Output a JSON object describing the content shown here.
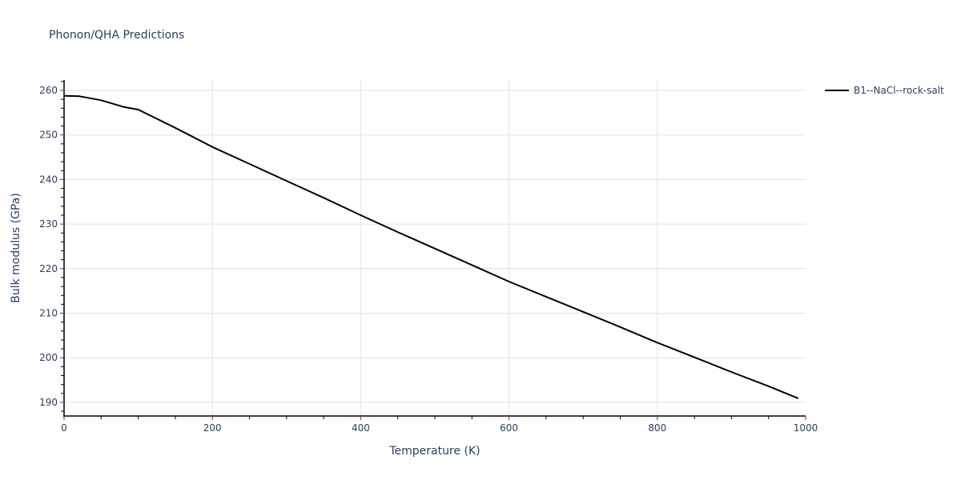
{
  "chart_data": {
    "type": "line",
    "title": "Phonon/QHA Predictions",
    "xlabel": "Temperature (K)",
    "ylabel": "Bulk modulus (GPa)",
    "xlim": [
      0,
      1000
    ],
    "ylim": [
      187.2,
      262.3
    ],
    "x_ticks": [
      0,
      200,
      400,
      600,
      800,
      1000
    ],
    "y_ticks": [
      190,
      200,
      210,
      220,
      230,
      240,
      250,
      260
    ],
    "grid": true,
    "legend_position": "right",
    "series": [
      {
        "name": "B1--NaCl--rock-salt",
        "color": "#000000",
        "x": [
          0,
          20,
          50,
          80,
          100,
          150,
          200,
          250,
          300,
          350,
          400,
          450,
          500,
          550,
          600,
          650,
          700,
          750,
          800,
          850,
          900,
          950,
          990
        ],
        "y": [
          258.8,
          258.7,
          257.8,
          256.3,
          255.7,
          251.6,
          247.3,
          243.5,
          239.7,
          235.9,
          232.0,
          228.2,
          224.5,
          220.8,
          217.1,
          213.7,
          210.3,
          206.9,
          203.4,
          200.1,
          196.8,
          193.6,
          190.9
        ]
      }
    ]
  },
  "header": {
    "title": "Phonon/QHA Predictions"
  },
  "axes": {
    "x_title": "Temperature (K)",
    "y_title": "Bulk modulus (GPa)",
    "x_tick_labels": [
      "0",
      "200",
      "400",
      "600",
      "800",
      "1000"
    ],
    "y_tick_labels": [
      "190",
      "200",
      "210",
      "220",
      "230",
      "240",
      "250",
      "260"
    ]
  },
  "legend": {
    "items": [
      {
        "label": "B1--NaCl--rock-salt",
        "color": "#000000"
      }
    ]
  }
}
